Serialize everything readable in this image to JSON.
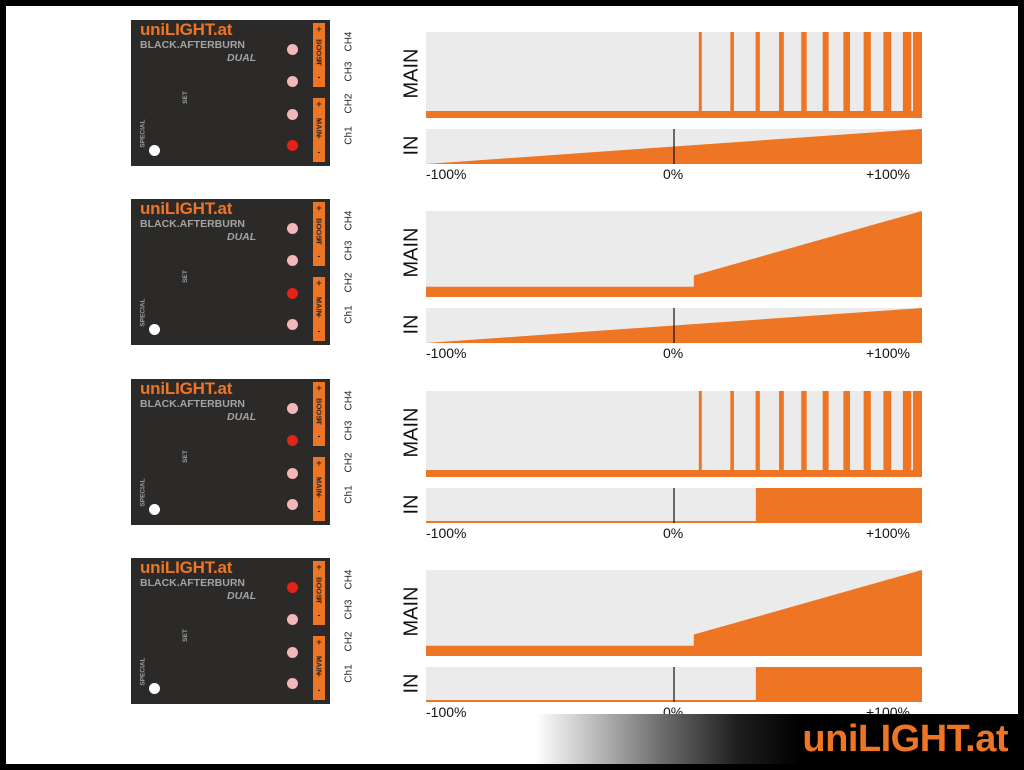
{
  "brand": {
    "name": "uniLIGHT.at",
    "model": "BLACK.AFTERBURN",
    "variant": "DUAL",
    "set_label": "SET",
    "special_label": "SPECIAL"
  },
  "groups": {
    "boost": "BOOST",
    "main": "MAIN"
  },
  "signs": {
    "minus": "-",
    "plus": "+"
  },
  "channels": [
    "CH4",
    "CH3",
    "CH2",
    "Ch1"
  ],
  "chart_labels": {
    "main": "MAIN",
    "in": "IN"
  },
  "axis_ticks": [
    "-100%",
    "0%",
    "+100%"
  ],
  "footer": {
    "brand": "uniLIGHT.at"
  },
  "colors": {
    "accent": "#ee7524",
    "module_bg": "#2b2a29",
    "led_off": "#f4b7b7",
    "led_on": "#e2231a",
    "chart_bg": "#ebebeb"
  },
  "rows": [
    {
      "active_led": "Ch1",
      "main_mode": "strobe",
      "in_mode": "ramp"
    },
    {
      "active_led": "CH2",
      "main_mode": "ramp",
      "in_mode": "ramp"
    },
    {
      "active_led": "CH3",
      "main_mode": "strobe",
      "in_mode": "step"
    },
    {
      "active_led": "CH4",
      "main_mode": "ramp",
      "in_mode": "step"
    }
  ],
  "chart_data": [
    {
      "type": "area",
      "title": "MAIN",
      "x": [
        -100,
        10,
        100
      ],
      "mode": "strobe",
      "base_level": 0.08,
      "xlim": [
        -100,
        100
      ]
    },
    {
      "type": "area",
      "title": "IN",
      "x": [
        -100,
        100
      ],
      "y": [
        0,
        1
      ],
      "mode": "ramp",
      "xlim": [
        -100,
        100
      ]
    },
    {
      "type": "area",
      "title": "MAIN",
      "x": [
        -100,
        8,
        100
      ],
      "y": [
        0.12,
        0.25,
        1
      ],
      "mode": "ramp",
      "xlim": [
        -100,
        100
      ]
    },
    {
      "type": "area",
      "title": "IN",
      "x": [
        -100,
        100
      ],
      "y": [
        0,
        1
      ],
      "mode": "ramp",
      "xlim": [
        -100,
        100
      ]
    },
    {
      "type": "area",
      "title": "MAIN",
      "x": [
        -100,
        10,
        100
      ],
      "mode": "strobe",
      "base_level": 0.08,
      "xlim": [
        -100,
        100
      ]
    },
    {
      "type": "area",
      "title": "IN",
      "x": [
        -100,
        33,
        100
      ],
      "y": [
        0.18,
        1,
        1
      ],
      "mode": "step",
      "xlim": [
        -100,
        100
      ]
    },
    {
      "type": "area",
      "title": "MAIN",
      "x": [
        -100,
        8,
        100
      ],
      "y": [
        0.12,
        0.25,
        1
      ],
      "mode": "ramp",
      "xlim": [
        -100,
        100
      ]
    },
    {
      "type": "area",
      "title": "IN",
      "x": [
        -100,
        33,
        100
      ],
      "y": [
        0.18,
        1,
        1
      ],
      "mode": "step",
      "xlim": [
        -100,
        100
      ]
    }
  ]
}
